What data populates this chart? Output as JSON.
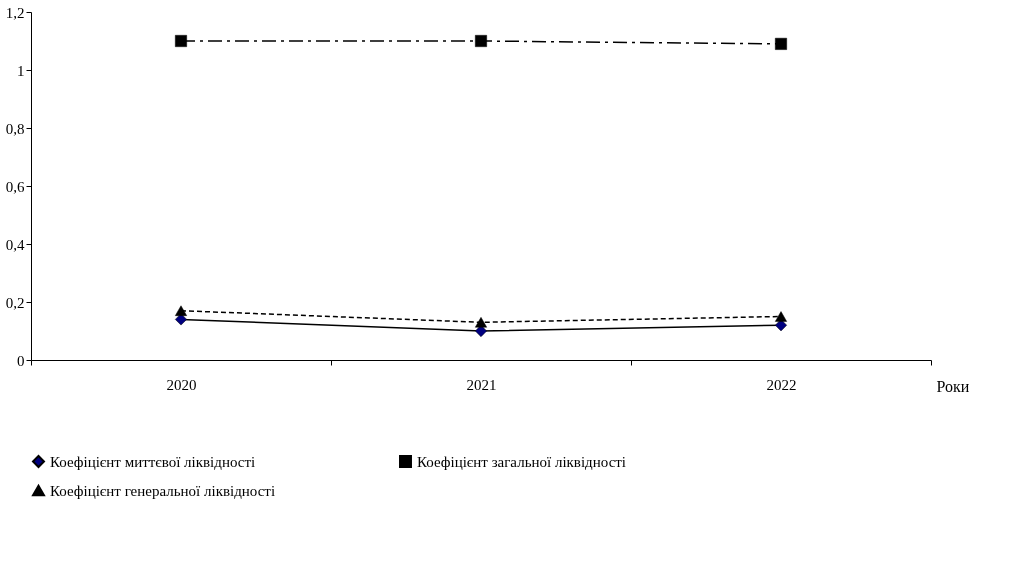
{
  "chart_data": {
    "type": "line",
    "xlabel": "Роки",
    "categories": [
      "2020",
      "2021",
      "2022"
    ],
    "series": [
      {
        "name": "Коефіцієнт миттєвої ліквідності",
        "color": "#000080",
        "marker": "diamond",
        "line_style": "solid",
        "values": [
          0.14,
          0.1,
          0.12
        ]
      },
      {
        "name": "Коефіцієнт загальної ліквідності",
        "color": "#000000",
        "marker": "square",
        "line_style": "dashdot",
        "values": [
          1.1,
          1.1,
          1.09
        ]
      },
      {
        "name": "Коефіцієнт генеральної ліквідності",
        "color": "#000000",
        "marker": "triangle",
        "line_style": "dashed",
        "values": [
          0.17,
          0.13,
          0.15
        ]
      }
    ],
    "ylim": [
      0,
      1.2
    ],
    "yticks": [
      0,
      {
        "value": 0.2,
        "label": "0,2"
      },
      {
        "value": 0.4,
        "label": "0,4"
      },
      {
        "value": 0.6,
        "label": "0,6"
      },
      {
        "value": 0.8,
        "label": "0,8"
      },
      1,
      {
        "value": 1.2,
        "label": "1,2"
      }
    ],
    "grid": false,
    "legend": "bottom"
  }
}
